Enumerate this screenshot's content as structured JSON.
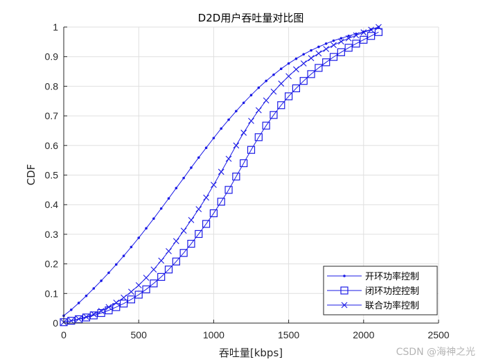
{
  "chart_data": {
    "type": "line",
    "title": "D2D用户吞吐量对比图",
    "xlabel": "吞吐量[kbps]",
    "ylabel": "CDF",
    "xlim": [
      0,
      2500
    ],
    "ylim": [
      0,
      1
    ],
    "xticks": [
      0,
      500,
      1000,
      1500,
      2000,
      2500
    ],
    "yticks": [
      0,
      0.1,
      0.2,
      0.3,
      0.4,
      0.5,
      0.6,
      0.7,
      0.8,
      0.9,
      1
    ],
    "xtick_labels": [
      "0",
      "500",
      "1000",
      "1500",
      "2000",
      "2500"
    ],
    "ytick_labels": [
      "0",
      "0.1",
      "0.2",
      "0.3",
      "0.4",
      "0.5",
      "0.6",
      "0.7",
      "0.8",
      "0.9",
      "1"
    ],
    "grid": true,
    "legend_position": "lower right",
    "x": [
      0,
      50,
      100,
      150,
      200,
      250,
      300,
      350,
      400,
      450,
      500,
      550,
      600,
      650,
      700,
      750,
      800,
      850,
      900,
      950,
      1000,
      1050,
      1100,
      1150,
      1200,
      1250,
      1300,
      1350,
      1400,
      1450,
      1500,
      1550,
      1600,
      1650,
      1700,
      1750,
      1800,
      1850,
      1900,
      1950,
      2000,
      2050,
      2100
    ],
    "series": [
      {
        "name": "开环功率控制",
        "marker": "dot",
        "color": "#1a1ae6",
        "values": [
          0.025,
          0.045,
          0.068,
          0.092,
          0.117,
          0.143,
          0.17,
          0.198,
          0.227,
          0.257,
          0.288,
          0.32,
          0.353,
          0.387,
          0.421,
          0.456,
          0.49,
          0.525,
          0.559,
          0.592,
          0.625,
          0.657,
          0.687,
          0.716,
          0.744,
          0.77,
          0.795,
          0.818,
          0.839,
          0.859,
          0.877,
          0.893,
          0.908,
          0.921,
          0.933,
          0.944,
          0.954,
          0.962,
          0.97,
          0.977,
          0.984,
          0.992,
          1.0
        ]
      },
      {
        "name": "闭环功控控制",
        "marker": "square",
        "color": "#1a1ae6",
        "values": [
          0.003,
          0.008,
          0.013,
          0.019,
          0.026,
          0.034,
          0.043,
          0.054,
          0.066,
          0.08,
          0.096,
          0.114,
          0.134,
          0.156,
          0.181,
          0.208,
          0.237,
          0.268,
          0.301,
          0.335,
          0.371,
          0.41,
          0.45,
          0.495,
          0.54,
          0.585,
          0.628,
          0.667,
          0.703,
          0.736,
          0.766,
          0.793,
          0.818,
          0.841,
          0.862,
          0.881,
          0.899,
          0.915,
          0.93,
          0.944,
          0.957,
          0.97,
          0.983
        ]
      },
      {
        "name": "联合功率控制",
        "marker": "x",
        "color": "#1a1ae6",
        "values": [
          0.003,
          0.008,
          0.014,
          0.021,
          0.03,
          0.041,
          0.054,
          0.069,
          0.086,
          0.106,
          0.128,
          0.153,
          0.181,
          0.211,
          0.243,
          0.277,
          0.312,
          0.348,
          0.385,
          0.424,
          0.467,
          0.511,
          0.555,
          0.6,
          0.643,
          0.683,
          0.719,
          0.752,
          0.782,
          0.809,
          0.834,
          0.857,
          0.877,
          0.895,
          0.911,
          0.926,
          0.939,
          0.951,
          0.962,
          0.972,
          0.982,
          0.991,
          1.0
        ]
      }
    ]
  },
  "legend": {
    "items": [
      {
        "label": "开环功率控制"
      },
      {
        "label": "闭环功控控制"
      },
      {
        "label": "联合功率控制"
      }
    ]
  },
  "watermark": "CSDN @海神之光"
}
